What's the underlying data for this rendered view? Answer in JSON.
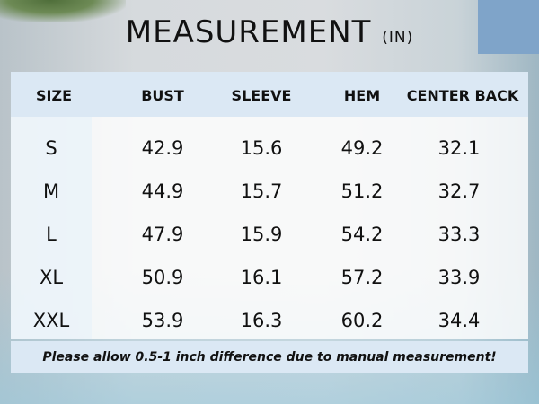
{
  "title": "MEASUREMENT",
  "unit": "(IN)",
  "columns": [
    "SIZE",
    "BUST",
    "SLEEVE",
    "HEM",
    "CENTER BACK"
  ],
  "rows": [
    [
      "S",
      "42.9",
      "15.6",
      "49.2",
      "32.1"
    ],
    [
      "M",
      "44.9",
      "15.7",
      "51.2",
      "32.7"
    ],
    [
      "L",
      "47.9",
      "15.9",
      "54.2",
      "33.3"
    ],
    [
      "XL",
      "50.9",
      "16.1",
      "57.2",
      "33.9"
    ],
    [
      "XXL",
      "53.9",
      "16.3",
      "60.2",
      "34.4"
    ]
  ],
  "note": "Please allow 0.5-1 inch difference due to manual measurement!",
  "colors": {
    "header_band": "#dbe8f4",
    "text": "#111111"
  }
}
